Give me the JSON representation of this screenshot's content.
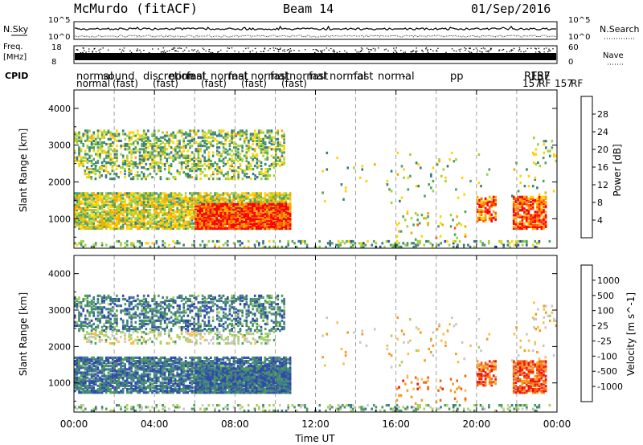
{
  "header": {
    "station": "McMurdo (fitACF)",
    "beam": "Beam 14",
    "date": "01/Sep/2016"
  },
  "strips": {
    "nsky_label": "N.Sky",
    "nsearch_label": "N.Search",
    "nsky_ticks": [
      "10^5",
      "10^0"
    ],
    "nsearch_ticks": [
      "10^5",
      "10^0"
    ],
    "freq_label_1": "Freq.",
    "freq_label_2": "[MHz]",
    "freq_ticks": [
      "18",
      "8"
    ],
    "nave_label": "Nave",
    "nave_ticks": [
      "60",
      "0"
    ],
    "cpid_label": "CPID",
    "cpid_row1": [
      "normal",
      "sound",
      "discretion",
      "normal",
      "fast",
      "normal",
      "fast",
      "normal",
      "fast",
      "normal",
      "fast",
      "normal",
      "fast",
      "normal",
      "-",
      "pp",
      "RF",
      "157",
      "RF"
    ],
    "cpid_row2": [
      "normal",
      "(fast)",
      "(fast)",
      "(fast)",
      "(fast)",
      "(fast)",
      "157",
      "RF",
      "157",
      "RF"
    ]
  },
  "chart_data": [
    {
      "type": "heatmap",
      "name": "Power",
      "ylabel": "Slant Range [km]",
      "y_ticks": [
        1000,
        2000,
        3000,
        4000
      ],
      "ylim": [
        200,
        4500
      ],
      "xlim_hours": [
        0,
        24
      ],
      "colorbar_label": "Power [dB]",
      "colorbar_ticks": [
        "28",
        "24",
        "20",
        "16",
        "12",
        "8",
        "4"
      ],
      "colorbar_colors": [
        "#ff0000",
        "#ff5a00",
        "#ffa500",
        "#ffd400",
        "#9fd23a",
        "#4fa060",
        "#3b7a7e",
        "#2a4f9e",
        "#1a1aff"
      ]
    },
    {
      "type": "heatmap",
      "name": "Velocity",
      "ylabel": "Slant Range [km]",
      "y_ticks": [
        1000,
        2000,
        3000,
        4000
      ],
      "ylim": [
        200,
        4500
      ],
      "xlim_hours": [
        0,
        24
      ],
      "colorbar_label": "Velocity [m s^-1]",
      "colorbar_ticks": [
        "1000",
        "500",
        "100",
        "25",
        "-25",
        "-100",
        "-500",
        "-1000"
      ],
      "colorbar_colors": [
        "#2f4aa8",
        "#3e7a8a",
        "#4e9a5e",
        "#a9cf62",
        "#c8c8c8",
        "#f5c04a",
        "#f59a1e",
        "#f56010",
        "#f01010"
      ]
    }
  ],
  "x_axis": {
    "label": "Time UT",
    "ticks": [
      "00:00",
      "04:00",
      "08:00",
      "12:00",
      "16:00",
      "20:00",
      "00:00"
    ]
  }
}
